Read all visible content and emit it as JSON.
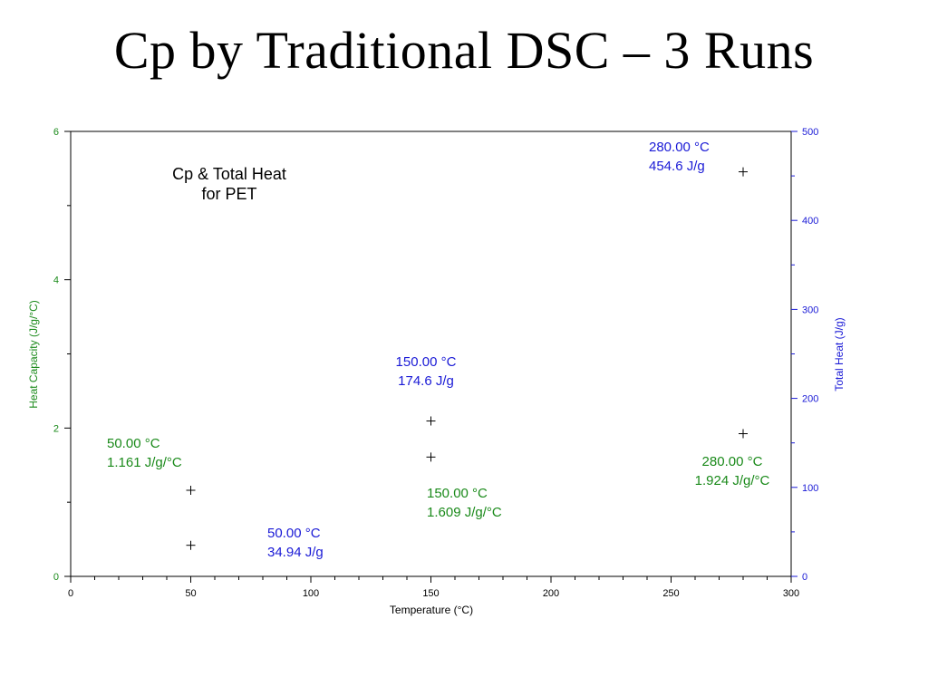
{
  "slide": {
    "title": "Cp by Traditional DSC – 3 Runs"
  },
  "colors": {
    "left_axis": "#1a8a1a",
    "right_axis": "#1a1ad6",
    "frame": "#000000"
  },
  "chart_data": {
    "type": "scatter",
    "title": "Cp & Total Heat\nfor PET",
    "xlabel": "Temperature (°C)",
    "ylabel": "Heat Capacity (J/g/°C)",
    "y2label": "Total Heat (J/g)",
    "xlim": [
      0,
      300
    ],
    "ylim": [
      0,
      6
    ],
    "y2lim": [
      0,
      500
    ],
    "x_major_ticks": [
      0,
      50,
      100,
      150,
      200,
      250,
      300
    ],
    "x_minor_step": 10,
    "y_major_ticks": [
      0,
      2,
      4,
      6
    ],
    "y_minor_step": 1,
    "y2_major_ticks": [
      0,
      100,
      200,
      300,
      400,
      500
    ],
    "y2_minor_step": 50,
    "series": [
      {
        "axis": "left",
        "x": [
          50,
          150,
          280
        ],
        "y": [
          1.161,
          1.609,
          1.924
        ],
        "labels": [
          [
            "50.00 °C",
            "1.161 J/g/°C"
          ],
          [
            "150.00 °C",
            "1.609 J/g/°C"
          ],
          [
            "280.00 °C",
            "1.924 J/g/°C"
          ]
        ]
      },
      {
        "axis": "right",
        "x": [
          50,
          150,
          280
        ],
        "y": [
          34.94,
          174.6,
          454.6
        ],
        "labels": [
          [
            "50.00 °C",
            "34.94 J/g"
          ],
          [
            "150.00 °C",
            "174.6 J/g"
          ],
          [
            "280.00 °C",
            "454.6 J/g"
          ]
        ]
      }
    ]
  }
}
